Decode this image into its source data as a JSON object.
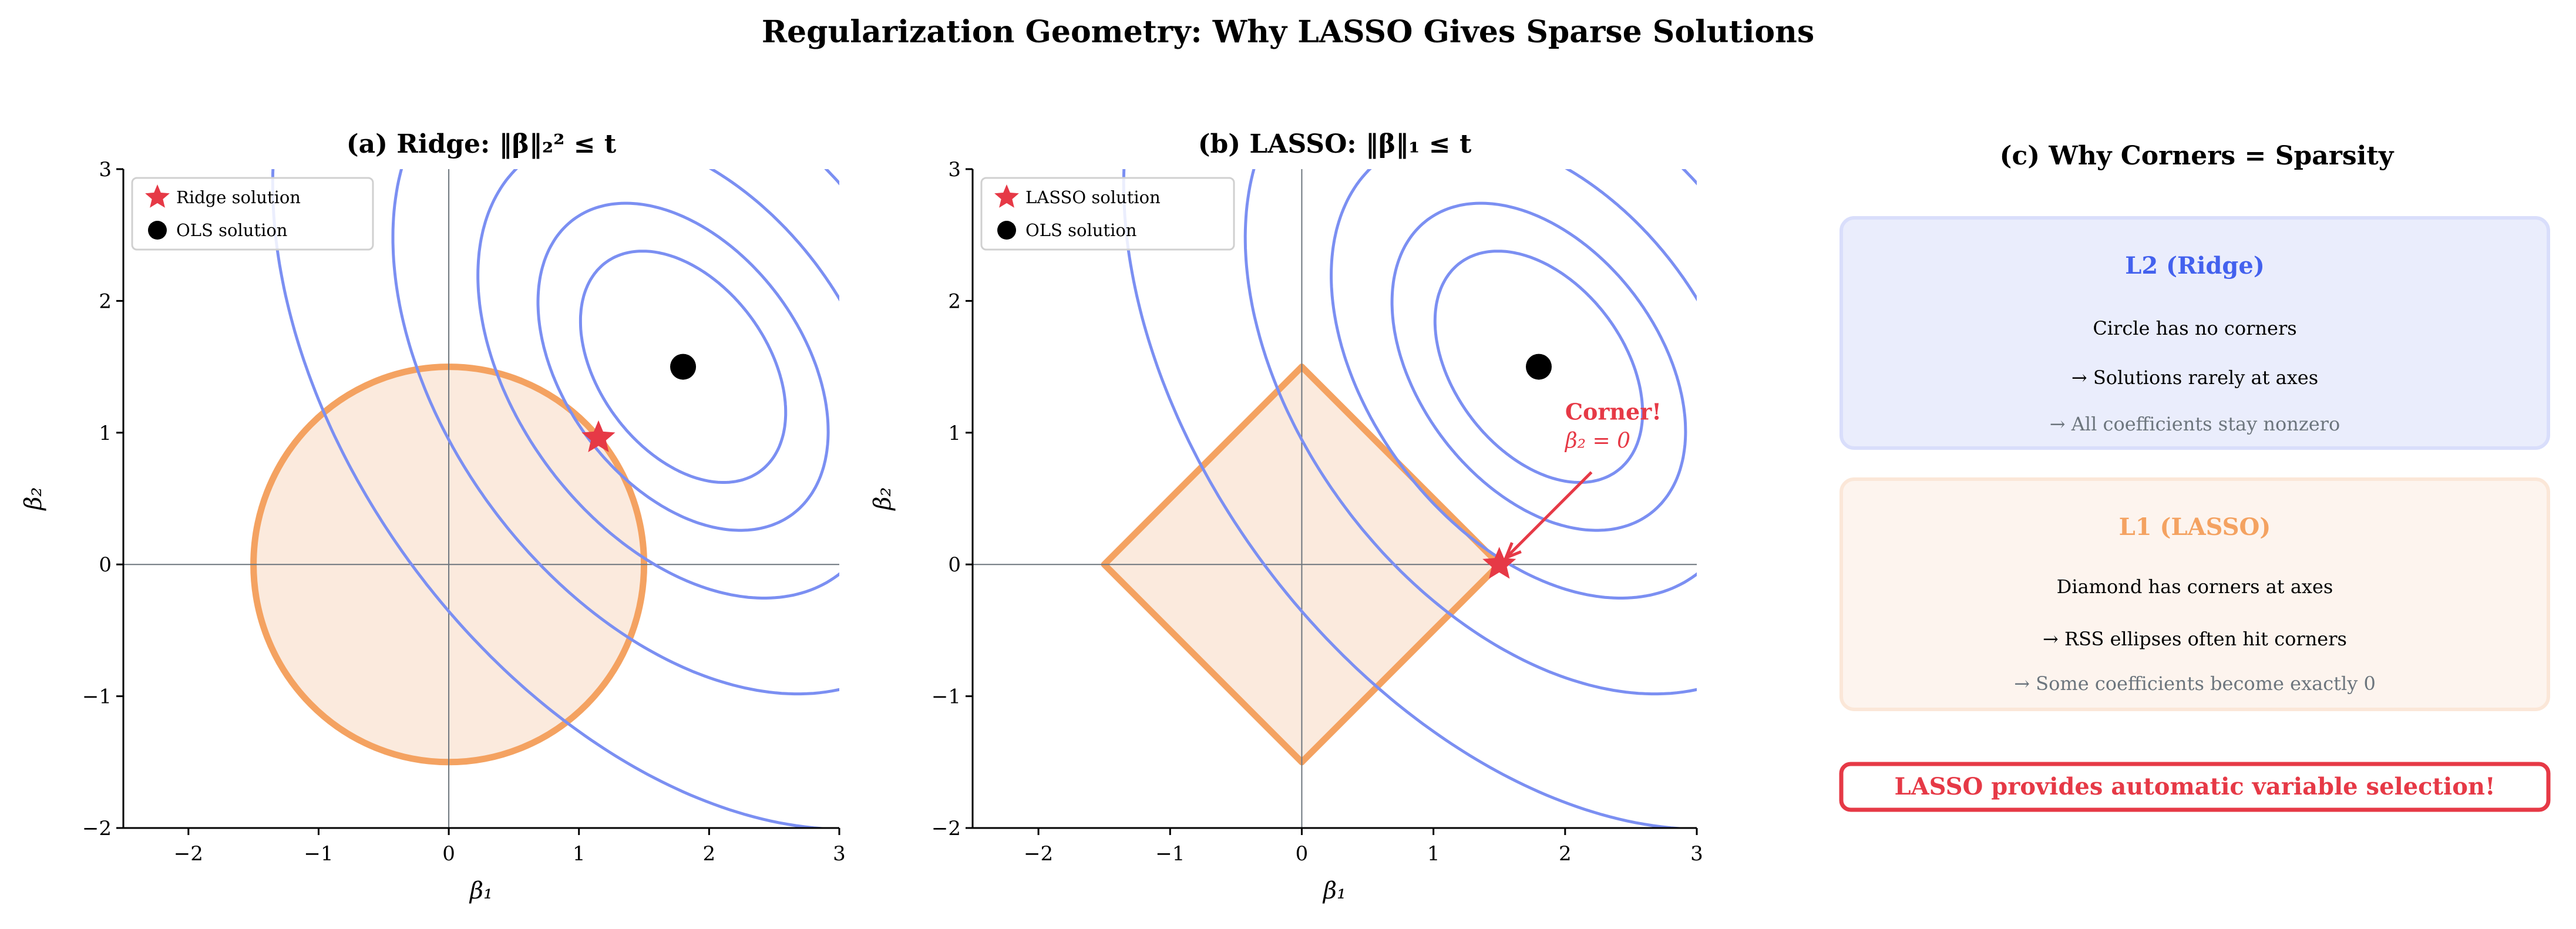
{
  "title": "Regularization Geometry: Why LASSO Gives Sparse Solutions",
  "colors": {
    "contour": "#7b8ff2",
    "constraint": "#f4a261",
    "constraint_fill": "#fbeadd",
    "solution": "#e63946",
    "ols": "#000000",
    "ridge_accent": "#4361ee",
    "lasso_accent": "#f4a261"
  },
  "chart_data": [
    {
      "type": "line",
      "title": "(a) Ridge: ‖β‖₂² ≤ t",
      "xlabel": "β₁",
      "ylabel": "β₂",
      "xlim": [
        -2.5,
        3
      ],
      "ylim": [
        -2,
        3
      ],
      "xticks": [
        -2,
        -1,
        0,
        1,
        2,
        3
      ],
      "yticks": [
        -2,
        -1,
        0,
        1,
        2,
        3
      ],
      "xtick_labels": [
        "−2",
        "−1",
        "0",
        "1",
        "2",
        "3"
      ],
      "ytick_labels": [
        "−2",
        "−1",
        "0",
        "1",
        "2",
        "3"
      ],
      "constraint": {
        "shape": "circle",
        "radius": 1.5
      },
      "contours": {
        "center": [
          1.8,
          1.5
        ],
        "quadratic_form": [
          [
            1.24,
            0.44
          ],
          [
            0.44,
            1.0
          ]
        ],
        "levels": [
          0.65,
          1.3,
          2.6,
          5.2,
          10.4
        ]
      },
      "ols": [
        1.8,
        1.5
      ],
      "solution": [
        1.15,
        0.96
      ],
      "legend": [
        "Ridge solution",
        "OLS solution"
      ],
      "legend_position": "upper-left"
    },
    {
      "type": "line",
      "title": "(b) LASSO: ‖β‖₁ ≤ t",
      "xlabel": "β₁",
      "ylabel": "β₂",
      "xlim": [
        -2.5,
        3
      ],
      "ylim": [
        -2,
        3
      ],
      "xticks": [
        -2,
        -1,
        0,
        1,
        2,
        3
      ],
      "yticks": [
        -2,
        -1,
        0,
        1,
        2,
        3
      ],
      "xtick_labels": [
        "−2",
        "−1",
        "0",
        "1",
        "2",
        "3"
      ],
      "ytick_labels": [
        "−2",
        "−1",
        "0",
        "1",
        "2",
        "3"
      ],
      "constraint": {
        "shape": "diamond",
        "radius": 1.5
      },
      "contours": {
        "center": [
          1.8,
          1.5
        ],
        "quadratic_form": [
          [
            1.24,
            0.44
          ],
          [
            0.44,
            1.0
          ]
        ],
        "levels": [
          0.65,
          1.3,
          2.6,
          5.2,
          10.4
        ]
      },
      "ols": [
        1.8,
        1.5
      ],
      "solution": [
        1.5,
        0.0
      ],
      "legend": [
        "LASSO solution",
        "OLS solution"
      ],
      "legend_position": "upper-left",
      "annotation": {
        "text": "Corner!",
        "subtext": "β₂ = 0",
        "text_at": [
          2.0,
          1.1
        ],
        "arrow_from": [
          2.2,
          0.7
        ],
        "arrow_to": [
          1.55,
          0.05
        ]
      }
    }
  ],
  "panel_c": {
    "title": "(c) Why Corners = Sparsity",
    "ridge_box": {
      "heading": "L2 (Ridge)",
      "line1": "Circle has no corners",
      "line2": "→  Solutions rarely at axes",
      "line3": "→  All coefficients stay nonzero"
    },
    "lasso_box": {
      "heading": "L1 (LASSO)",
      "line1": "Diamond has corners at axes",
      "line2": "→  RSS ellipses often hit corners",
      "line3": "→  Some coefficients become exactly 0"
    },
    "callout": "LASSO provides automatic variable selection!"
  }
}
